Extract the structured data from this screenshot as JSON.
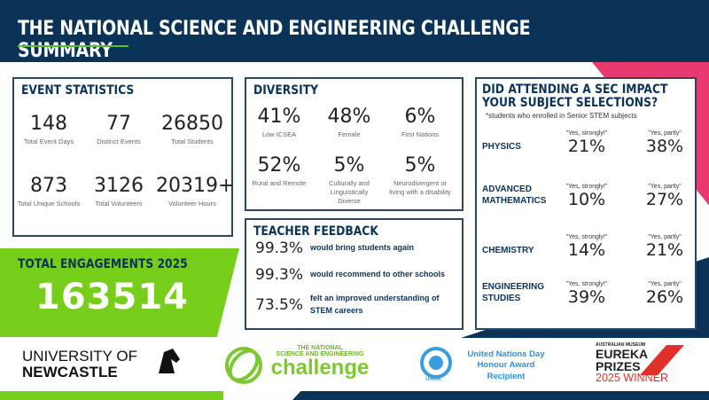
{
  "title": "THE NATIONAL SCIENCE AND ENGINEERING CHALLENGE SUMMARY",
  "colors": {
    "navy": "#0b3358",
    "green": "#76cd1a",
    "pink": "#e83a6e"
  },
  "event_statistics": {
    "heading": "EVENT STATISTICS",
    "items": [
      {
        "value": "148",
        "label": "Total Event Days"
      },
      {
        "value": "77",
        "label": "Distinct Events"
      },
      {
        "value": "26850",
        "label": "Total Students"
      },
      {
        "value": "873",
        "label": "Total Unique Schools"
      },
      {
        "value": "3126",
        "label": "Total Volunteers"
      },
      {
        "value": "20319+",
        "label": "Volunteer Hours"
      }
    ]
  },
  "diversity": {
    "heading": "DIVERSITY",
    "items": [
      {
        "value": "41%",
        "label": "Low ICSEA"
      },
      {
        "value": "48%",
        "label": "Female"
      },
      {
        "value": "6%",
        "label": "First Nations"
      },
      {
        "value": "52%",
        "label": "Rural and Remote"
      },
      {
        "value": "5%",
        "label": "Culturally and Linguistically Diverse"
      },
      {
        "value": "5%",
        "label": "Neurodivergent or living with a disability"
      }
    ]
  },
  "teacher_feedback": {
    "heading": "TEACHER FEEDBACK",
    "items": [
      {
        "value": "99.3%",
        "label": "would bring students again"
      },
      {
        "value": "99.3%",
        "label": "would recommend to other schools"
      },
      {
        "value": "73.5%",
        "label": "felt an improved understanding of STEM careers"
      }
    ]
  },
  "impact": {
    "heading_line1": "DID ATTENDING A SEC IMPACT",
    "heading_line2": "YOUR SUBJECT SELECTIONS?",
    "note": "*students who enrolled in Senior STEM subjects",
    "strongly_label": "\"Yes, strongly!\"",
    "partly_label": "\"Yes, partly\"",
    "subjects": [
      {
        "name": "PHYSICS",
        "strongly": "21%",
        "partly": "38%"
      },
      {
        "name": "ADVANCED MATHEMATICS",
        "strongly": "10%",
        "partly": "27%"
      },
      {
        "name": "CHEMISTRY",
        "strongly": "14%",
        "partly": "21%"
      },
      {
        "name": "ENGINEERING STUDIES",
        "strongly": "39%",
        "partly": "26%"
      }
    ]
  },
  "total": {
    "label": "TOTAL ENGAGEMENTS 2025",
    "value": "163514"
  },
  "logos": {
    "newcastle_line1": "UNIVERSITY OF",
    "newcastle_line2": "NEWCASTLE",
    "sec_line1": "THE NATIONAL",
    "sec_line2": "SCIENCE AND ENGINEERING",
    "sec_line3": "challenge",
    "un_line1": "United Nations Day",
    "un_line2": "Honour Award",
    "un_line3": "Recipient",
    "un_emblem": "UNAA",
    "eureka_line1": "AUSTRALIAN MUSEUM",
    "eureka_line2": "EUREKA",
    "eureka_line3": "PRIZES",
    "eureka_line4": "2025 WINNER"
  }
}
